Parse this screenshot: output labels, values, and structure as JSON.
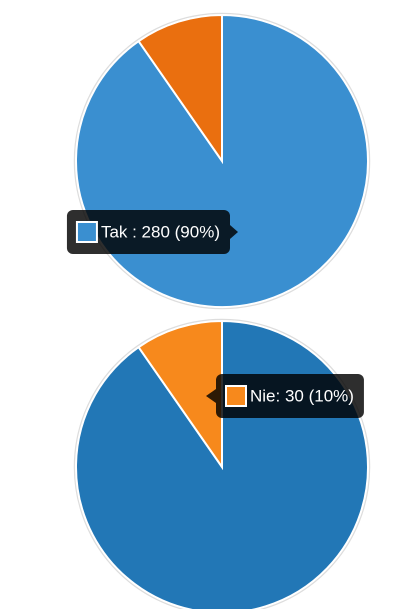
{
  "chart_data": [
    {
      "type": "pie",
      "values": [
        280,
        30
      ],
      "colors": [
        "#3a8fd0",
        "#ea6f0f"
      ],
      "value_labels": [
        "Tak : 280 (90%)",
        null
      ]
    },
    {
      "type": "pie",
      "values": [
        280,
        30
      ],
      "colors": [
        "#2277b6",
        "#f7891c"
      ],
      "value_labels": [
        null,
        "Nie: 30 (10%)"
      ]
    }
  ]
}
